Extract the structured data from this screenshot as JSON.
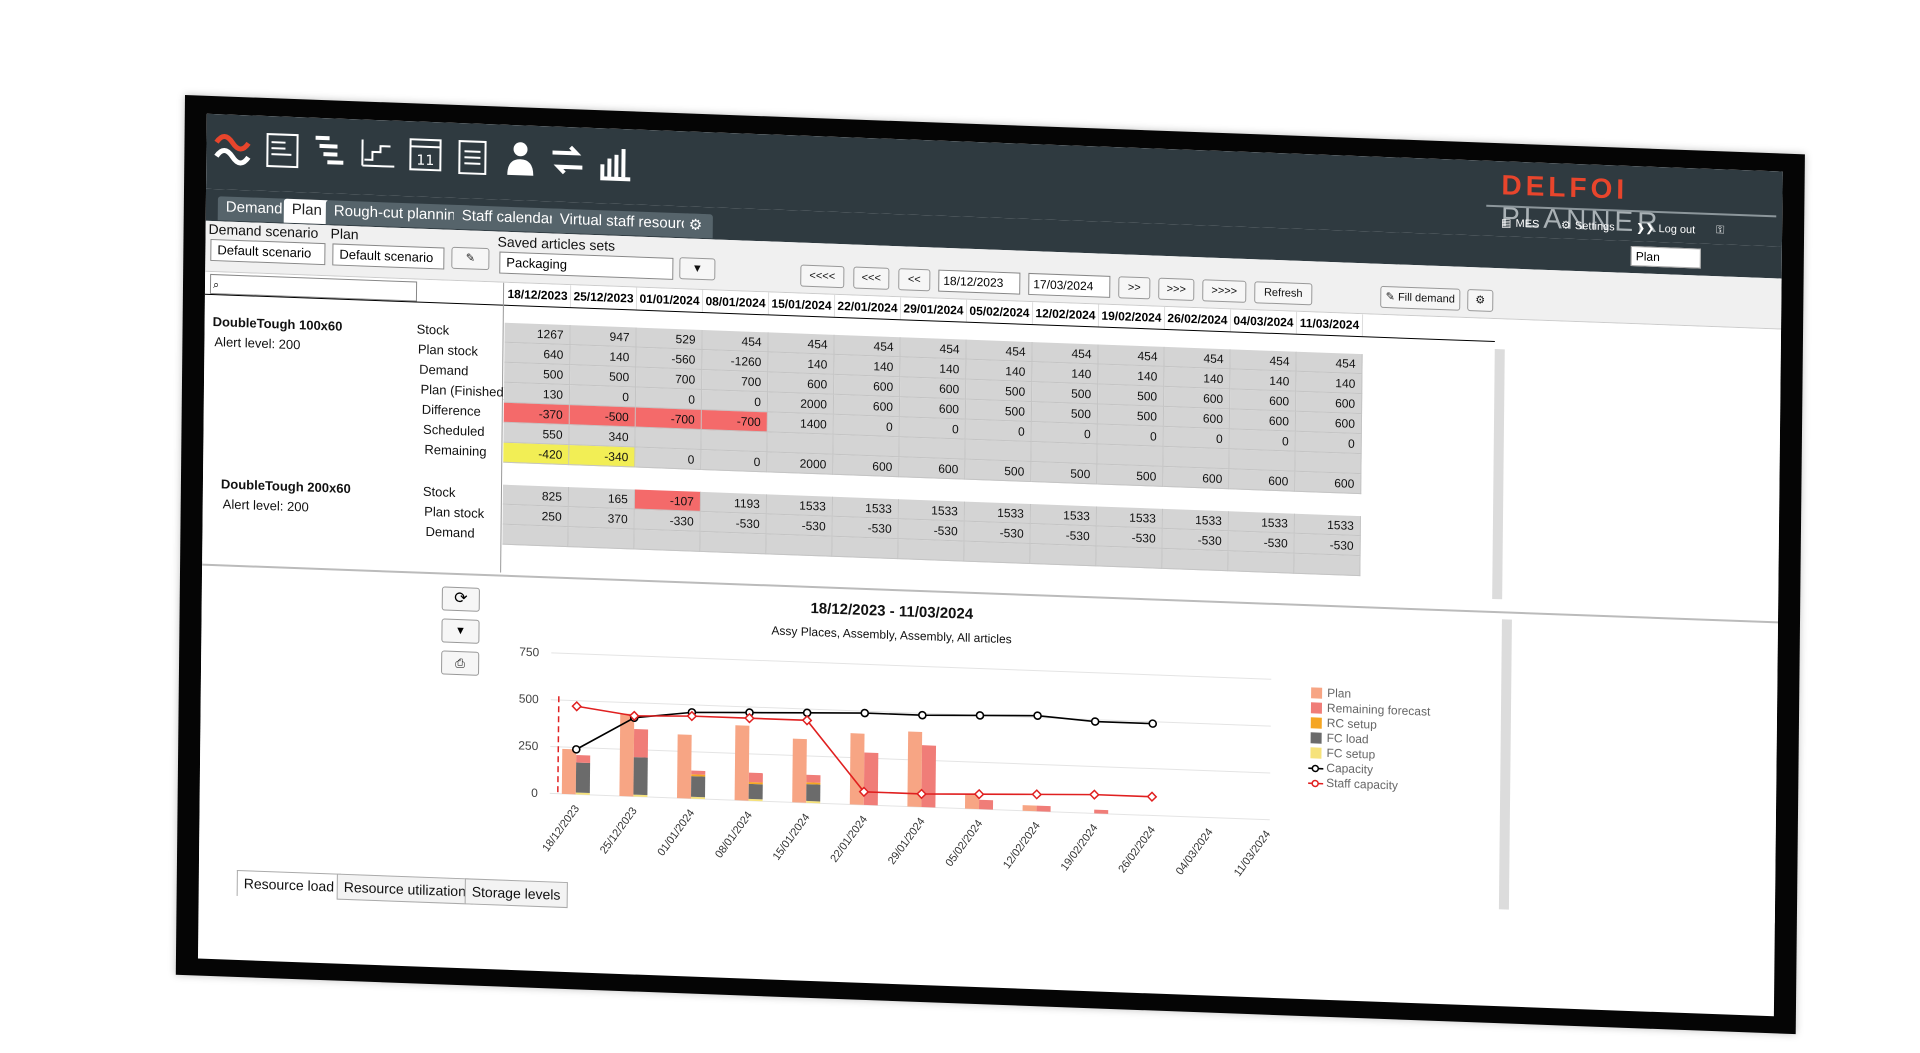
{
  "brand": {
    "name_red": "DELFOI",
    "name_grey": "PLANNER"
  },
  "toplinks": {
    "mes": "MES",
    "settings": "Settings",
    "logout": "Log out"
  },
  "tabs": [
    "Demand",
    "Plan",
    "Rough-cut planning",
    "Staff calendars",
    "Virtual staff resources"
  ],
  "active_tab": "Plan",
  "plan_mode_select": "Plan",
  "filters": {
    "demand_scenario_label": "Demand scenario",
    "demand_scenario_value": "Default scenario",
    "plan_label": "Plan",
    "plan_value": "Default scenario",
    "saved_sets_label": "Saved articles sets",
    "saved_sets_value": "Packaging"
  },
  "navigation": {
    "buttons": [
      "<<<<",
      "<<<",
      "<<",
      ">>",
      ">>>",
      ">>>>"
    ],
    "date_from": "18/12/2023",
    "date_to": "17/03/2024",
    "refresh": "Refresh",
    "fill_demand": "Fill demand"
  },
  "grid": {
    "search_icon": "⌕",
    "dates": [
      "18/12/2023",
      "25/12/2023",
      "01/01/2024",
      "08/01/2024",
      "15/01/2024",
      "22/01/2024",
      "29/01/2024",
      "05/02/2024",
      "12/02/2024",
      "19/02/2024",
      "26/02/2024",
      "04/03/2024",
      "11/03/2024"
    ],
    "articles": [
      {
        "name": "DoubleTough 100x60",
        "alert": "Alert level: 200",
        "rows": [
          {
            "label": "Stock",
            "values": [
              "1267",
              "947",
              "529",
              "454",
              "454",
              "454",
              "454",
              "454",
              "454",
              "454",
              "454",
              "454",
              "454"
            ],
            "colors": [
              "",
              "",
              "",
              "",
              "",
              "",
              "",
              "",
              "",
              "",
              "",
              "",
              ""
            ]
          },
          {
            "label": "Plan stock",
            "values": [
              "640",
              "140",
              "-560",
              "-1260",
              "140",
              "140",
              "140",
              "140",
              "140",
              "140",
              "140",
              "140",
              "140"
            ],
            "colors": [
              "",
              "",
              "",
              "",
              "",
              "",
              "",
              "",
              "",
              "",
              "",
              "",
              ""
            ]
          },
          {
            "label": "Demand",
            "values": [
              "500",
              "500",
              "700",
              "700",
              "600",
              "600",
              "600",
              "500",
              "500",
              "500",
              "600",
              "600",
              "600"
            ],
            "colors": [
              "",
              "",
              "",
              "",
              "",
              "",
              "",
              "",
              "",
              "",
              "",
              "",
              ""
            ]
          },
          {
            "label": "Plan (Finished)",
            "values": [
              "130",
              "0",
              "0",
              "0",
              "2000",
              "600",
              "600",
              "500",
              "500",
              "500",
              "600",
              "600",
              "600"
            ],
            "colors": [
              "",
              "",
              "",
              "",
              "",
              "",
              "",
              "",
              "",
              "",
              "",
              "",
              ""
            ]
          },
          {
            "label": "Difference",
            "values": [
              "-370",
              "-500",
              "-700",
              "-700",
              "1400",
              "0",
              "0",
              "0",
              "0",
              "0",
              "0",
              "0",
              "0"
            ],
            "colors": [
              "red",
              "red",
              "red",
              "red",
              "",
              "",
              "",
              "",
              "",
              "",
              "",
              "",
              ""
            ]
          },
          {
            "label": "Scheduled",
            "values": [
              "550",
              "340",
              "",
              "",
              "",
              "",
              "",
              "",
              "",
              "",
              "",
              "",
              ""
            ],
            "colors": [
              "",
              "",
              "",
              "",
              "",
              "",
              "",
              "",
              "",
              "",
              "",
              "",
              ""
            ]
          },
          {
            "label": "Remaining",
            "values": [
              "-420",
              "-340",
              "0",
              "0",
              "2000",
              "600",
              "600",
              "500",
              "500",
              "500",
              "600",
              "600",
              "600"
            ],
            "colors": [
              "yellow",
              "yellow",
              "",
              "",
              "",
              "",
              "",
              "",
              "",
              "",
              "",
              "",
              ""
            ]
          }
        ]
      },
      {
        "name": "DoubleTough 200x60",
        "alert": "Alert level: 200",
        "rows": [
          {
            "label": "Stock",
            "values": [
              "825",
              "165",
              "-107",
              "1193",
              "1533",
              "1533",
              "1533",
              "1533",
              "1533",
              "1533",
              "1533",
              "1533",
              "1533"
            ],
            "colors": [
              "",
              "",
              "red",
              "",
              "",
              "",
              "",
              "",
              "",
              "",
              "",
              "",
              ""
            ]
          },
          {
            "label": "Plan stock",
            "values": [
              "250",
              "370",
              "-330",
              "-530",
              "-530",
              "-530",
              "-530",
              "-530",
              "-530",
              "-530",
              "-530",
              "-530",
              "-530"
            ],
            "colors": [
              "",
              "",
              "",
              "",
              "",
              "",
              "",
              "",
              "",
              "",
              "",
              "",
              ""
            ]
          },
          {
            "label": "Demand",
            "values": [
              "",
              "",
              "",
              "",
              "",
              "",
              "",
              "",
              "",
              "",
              "",
              "",
              ""
            ],
            "colors": [
              "",
              "",
              "",
              "",
              "",
              "",
              "",
              "",
              "",
              "",
              "",
              "",
              ""
            ]
          }
        ]
      }
    ]
  },
  "chart_data": {
    "type": "bar",
    "title": "18/12/2023 - 11/03/2024",
    "subtitle": "Assy Places, Assembly, Assembly, All articles",
    "categories": [
      "18/12/2023",
      "25/12/2023",
      "01/01/2024",
      "08/01/2024",
      "15/01/2024",
      "22/01/2024",
      "29/01/2024",
      "05/02/2024",
      "12/02/2024",
      "19/02/2024",
      "26/02/2024",
      "04/03/2024",
      "11/03/2024"
    ],
    "ylim": [
      0,
      800
    ],
    "yticks": [
      "750",
      "500",
      "250",
      "0"
    ],
    "series": [
      {
        "name": "Plan",
        "kind": "bar",
        "color": "#f7a584",
        "values": [
          240,
          440,
          340,
          400,
          340,
          380,
          400,
          80,
          30,
          0,
          0,
          0,
          0
        ]
      },
      {
        "name": "Remaining forecast",
        "kind": "bar",
        "color": "#f07d78",
        "values": [
          210,
          360,
          150,
          150,
          150,
          280,
          330,
          50,
          30,
          20,
          0,
          0,
          0
        ]
      },
      {
        "name": "RC setup",
        "kind": "bar",
        "color": "#f5a623",
        "values": [
          0,
          0,
          10,
          10,
          10,
          0,
          0,
          0,
          0,
          0,
          0,
          0,
          0
        ]
      },
      {
        "name": "FC load",
        "kind": "bar",
        "color": "#6b6b6b",
        "values": [
          160,
          200,
          110,
          80,
          90,
          0,
          0,
          0,
          0,
          0,
          0,
          0,
          0
        ]
      },
      {
        "name": "FC setup",
        "kind": "bar",
        "color": "#f6e27a",
        "values": [
          10,
          10,
          10,
          10,
          10,
          0,
          0,
          0,
          0,
          0,
          0,
          0,
          0
        ]
      },
      {
        "name": "Capacity",
        "kind": "line",
        "color": "#000000",
        "values": [
          240,
          420,
          460,
          470,
          480,
          490,
          490,
          500,
          510,
          490,
          490,
          null,
          null
        ]
      },
      {
        "name": "Staff capacity",
        "kind": "line",
        "color": "#e02020",
        "values": [
          470,
          430,
          440,
          440,
          440,
          70,
          70,
          80,
          90,
          100,
          100,
          null,
          null
        ]
      }
    ]
  },
  "bottom_tabs": [
    "Resource load",
    "Resource utilization",
    "Storage levels"
  ],
  "active_bottom_tab": "Resource load"
}
